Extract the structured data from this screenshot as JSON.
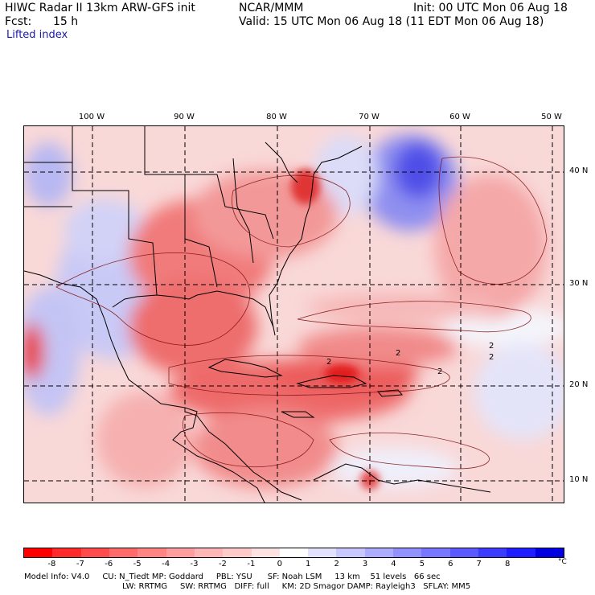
{
  "header": {
    "model": "HIWC Radar II 13km ARW-GFS init",
    "org": "NCAR/MMM",
    "init": "Init: 00 UTC Mon 06 Aug 18",
    "fcst_label": "Fcst:",
    "fcst_value": "15 h",
    "valid": "Valid: 15 UTC Mon 06 Aug 18 (11 EDT Mon 06 Aug 18)",
    "field": "Lifted index"
  },
  "map": {
    "lon_labels": [
      "100 W",
      "90 W",
      "80 W",
      "70 W",
      "60 W",
      "50 W"
    ],
    "lat_labels": [
      "40 N",
      "30 N",
      "20 N",
      "10 N"
    ],
    "contour_labels": [
      "2",
      "2",
      "2",
      "2",
      "2"
    ]
  },
  "colorbar": {
    "colors": [
      "#ff0000",
      "#ff2b2b",
      "#ff4b4b",
      "#ff6a6a",
      "#ff8484",
      "#ff9e9e",
      "#ffb6b6",
      "#ffcaca",
      "#ffe2e2",
      "#ffffff",
      "#e2e2ff",
      "#c8c8ff",
      "#adadff",
      "#9292ff",
      "#7777ff",
      "#5a5aff",
      "#3c3cff",
      "#1e1eff",
      "#0000e0"
    ],
    "ticks": [
      "-8",
      "-7",
      "-6",
      "-5",
      "-4",
      "-3",
      "-2",
      "-1",
      "0",
      "1",
      "2",
      "3",
      "4",
      "5",
      "6",
      "7",
      "8"
    ],
    "unit": "°C"
  },
  "footer": {
    "line1": "Model Info: V4.0     CU: N_Tiedt MP: Goddard     PBL: YSU      SF: Noah LSM     13 km    51 levels   66 sec",
    "line2": "LW: RRTMG     SW: RRTMG   DIFF: full     KM: 2D Smagor DAMP: Rayleigh3   SFLAY: MM5"
  }
}
